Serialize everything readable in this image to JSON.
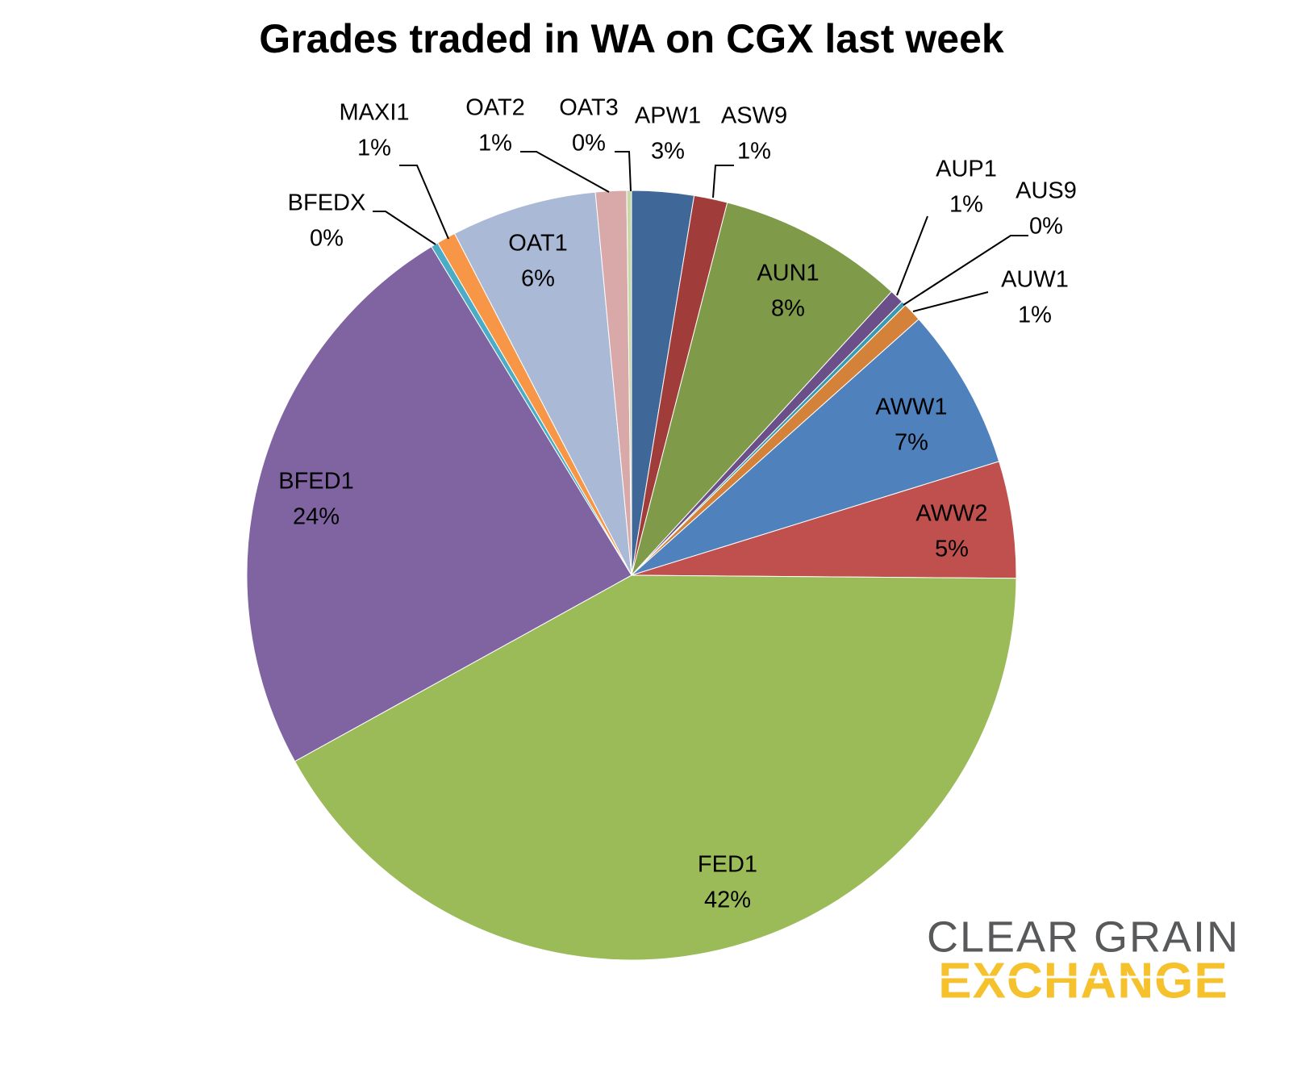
{
  "chart_data": {
    "type": "pie",
    "title": "Grades traded in WA on CGX last week",
    "categories": [
      "APW1",
      "ASW9",
      "AUN1",
      "AUP1",
      "AUS9",
      "AUW1",
      "AWW1",
      "AWW2",
      "FED1",
      "BFED1",
      "BFEDX",
      "MAXI1",
      "OAT1",
      "OAT2",
      "OAT3"
    ],
    "values": [
      2.6,
      1.4,
      7.8,
      0.6,
      0.2,
      0.8,
      6.8,
      4.9,
      41.8,
      24.3,
      0.3,
      0.8,
      6.1,
      1.3,
      0.2
    ],
    "value_labels": [
      "3%",
      "1%",
      "8%",
      "1%",
      "0%",
      "1%",
      "7%",
      "5%",
      "42%",
      "24%",
      "0%",
      "1%",
      "6%",
      "1%",
      "0%"
    ],
    "colors": [
      "#3f6898",
      "#a03c3a",
      "#7f9a48",
      "#6a4f88",
      "#3a9ab0",
      "#d4823a",
      "#4f81bd",
      "#c0504d",
      "#9bbb59",
      "#8064a2",
      "#4bacc6",
      "#f79646",
      "#aab9d6",
      "#d9a9a9",
      "#c8d8a8"
    ]
  },
  "logo": {
    "line1": "CLEAR GRAIN",
    "line2": "EXCHANGE"
  }
}
